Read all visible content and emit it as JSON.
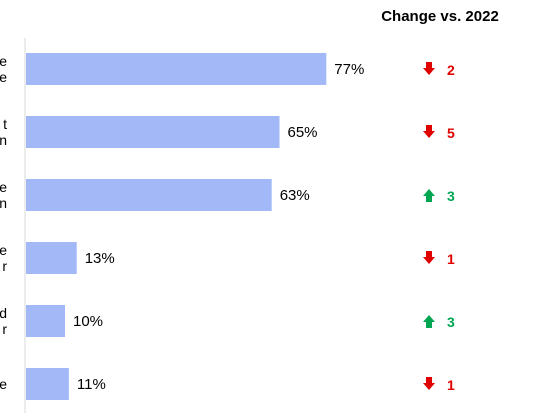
{
  "chart_data": {
    "type": "bar",
    "orientation": "horizontal",
    "categories": [
      "e\ne",
      "t\nn",
      "e\nn",
      "e\nr",
      "d\nr",
      "e"
    ],
    "values": [
      77,
      65,
      63,
      13,
      10,
      11
    ],
    "value_labels": [
      "77%",
      "65%",
      "63%",
      "13%",
      "10%",
      "11%"
    ],
    "xlim": [
      0,
      100
    ],
    "bar_color": "#a3b8f7",
    "change_header": "Change vs. 2022",
    "changes": [
      {
        "direction": "down",
        "value": "2"
      },
      {
        "direction": "down",
        "value": "5"
      },
      {
        "direction": "up",
        "value": "3"
      },
      {
        "direction": "down",
        "value": "1"
      },
      {
        "direction": "up",
        "value": "3"
      },
      {
        "direction": "down",
        "value": "1"
      }
    ],
    "colors": {
      "up": "#00a651",
      "down": "#e00000",
      "axis": "#d9d9d9"
    }
  }
}
